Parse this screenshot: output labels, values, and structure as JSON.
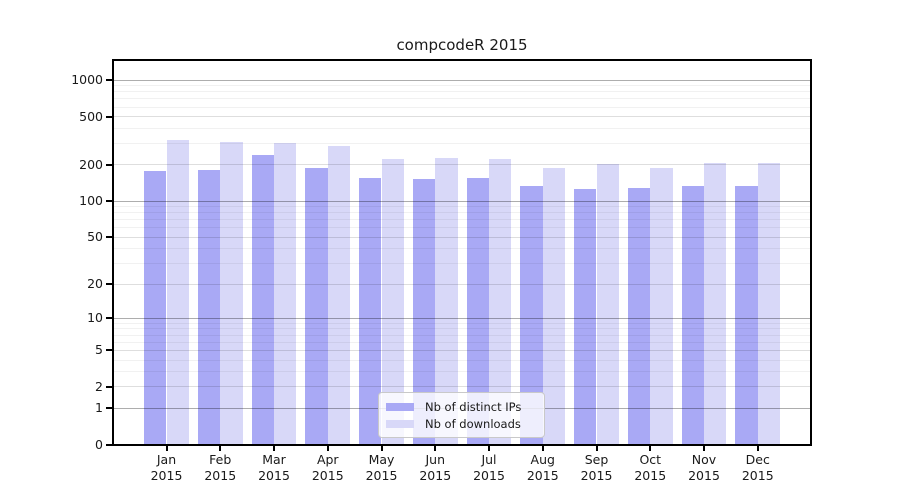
{
  "chart_data": {
    "type": "bar",
    "title": "compcodeR 2015",
    "categories": [
      "Jan 2015",
      "Feb 2015",
      "Mar 2015",
      "Apr 2015",
      "May 2015",
      "Jun 2015",
      "Jul 2015",
      "Aug 2015",
      "Sep 2015",
      "Oct 2015",
      "Nov 2015",
      "Dec 2015"
    ],
    "months": [
      "Jan",
      "Feb",
      "Mar",
      "Apr",
      "May",
      "Jun",
      "Jul",
      "Aug",
      "Sep",
      "Oct",
      "Nov",
      "Dec"
    ],
    "year": "2015",
    "series": [
      {
        "name": "Nb of distinct IPs",
        "color": "#a9a9f5",
        "values": [
          178,
          180,
          241,
          187,
          157,
          152,
          156,
          133,
          126,
          128,
          133,
          135
        ]
      },
      {
        "name": "Nb of downloads",
        "color": "#d8d8f8",
        "values": [
          324,
          310,
          302,
          284,
          222,
          229,
          223,
          188,
          204,
          189,
          206,
          208
        ]
      }
    ],
    "y_axis": {
      "scale": "log10(1+x)",
      "ticks": [
        0,
        1,
        2,
        5,
        10,
        20,
        50,
        100,
        200,
        500,
        1000
      ],
      "decade_gridlines": [
        1,
        10,
        100,
        1000
      ],
      "major_gridlines": [
        2,
        5,
        20,
        50,
        200,
        500
      ],
      "minor_gridlines": [
        3,
        4,
        6,
        7,
        8,
        9,
        30,
        40,
        60,
        70,
        80,
        90,
        300,
        400,
        600,
        700,
        800,
        900
      ],
      "ylim": [
        0,
        1500
      ]
    },
    "legend_position": "bottom-center",
    "grid": "on",
    "colors": {
      "distinct_ips": "#a9a9f5",
      "downloads": "#d8d8f8",
      "axis": "#000000",
      "background": "#ffffff"
    }
  }
}
